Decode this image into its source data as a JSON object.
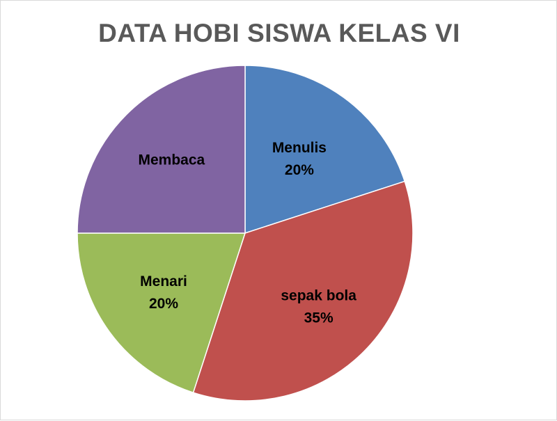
{
  "chart_data": {
    "type": "pie",
    "title": "DATA HOBI SISWA KELAS VI",
    "slices": [
      {
        "name": "Menulis",
        "value": 20,
        "label": "20%",
        "color": "#4F81BD"
      },
      {
        "name": "sepak bola",
        "value": 35,
        "label": "35%",
        "color": "#C0504D"
      },
      {
        "name": "Menari",
        "value": 20,
        "label": "20%",
        "color": "#9BBB59"
      },
      {
        "name": "Membaca",
        "value": 25,
        "label": "",
        "color": "#8064A2"
      }
    ],
    "legend": "none"
  }
}
